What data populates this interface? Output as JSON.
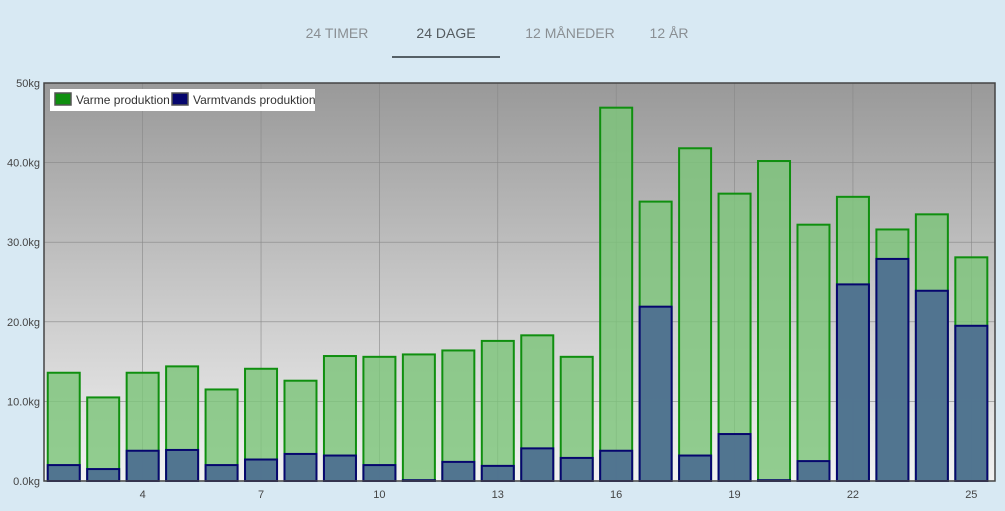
{
  "tabs": [
    {
      "label": "24 TIMER",
      "active": false
    },
    {
      "label": "24 DAGE",
      "active": true
    },
    {
      "label": "12 MÅNEDER",
      "active": false
    },
    {
      "label": "12 ÅR",
      "active": false
    }
  ],
  "colors": {
    "page_background": "#d8e9f3",
    "plot_background_top": "#999999",
    "plot_background_bottom": "#f2f2f2",
    "series_1_fill": "#7cc47a",
    "series_1_stroke": "#0f8f0f",
    "series_2_fill": "#4e7090",
    "series_2_stroke": "#06066e"
  },
  "chart_data": {
    "type": "bar",
    "title": "",
    "xlabel": "",
    "ylabel": "",
    "ylim": [
      0,
      50
    ],
    "yticks": [
      0,
      10,
      20,
      30,
      40,
      50
    ],
    "ytick_labels": [
      "0.0kg",
      "10.0kg",
      "20.0kg",
      "30.0kg",
      "40.0kg",
      "50kg"
    ],
    "xlim": [
      1.5,
      25.6
    ],
    "xticks": [
      4,
      7,
      10,
      13,
      16,
      19,
      22,
      25
    ],
    "xtick_labels": [
      "4",
      "7",
      "10",
      "13",
      "16",
      "19",
      "22",
      "25"
    ],
    "x": [
      2,
      3,
      4,
      5,
      6,
      7,
      8,
      9,
      10,
      11,
      12,
      13,
      14,
      15,
      16,
      17,
      18,
      19,
      20,
      21,
      22,
      23,
      24,
      25
    ],
    "series": [
      {
        "name": "Varme produktion",
        "values": [
          13.6,
          10.5,
          13.6,
          14.4,
          11.5,
          14.1,
          12.6,
          15.7,
          15.6,
          15.9,
          16.4,
          17.6,
          18.3,
          15.6,
          46.9,
          35.1,
          41.8,
          36.1,
          40.2,
          32.2,
          35.7,
          31.6,
          33.5,
          28.1
        ]
      },
      {
        "name": "Varmtvands produktion",
        "values": [
          2.0,
          1.5,
          3.8,
          3.9,
          2.0,
          2.7,
          3.4,
          3.2,
          2.0,
          0.1,
          2.4,
          1.9,
          4.1,
          2.9,
          3.8,
          21.9,
          3.2,
          5.9,
          0.1,
          2.5,
          24.7,
          27.9,
          23.9,
          19.5
        ]
      }
    ],
    "overlaid": true,
    "grid": true,
    "legend_placement": "top-left"
  }
}
